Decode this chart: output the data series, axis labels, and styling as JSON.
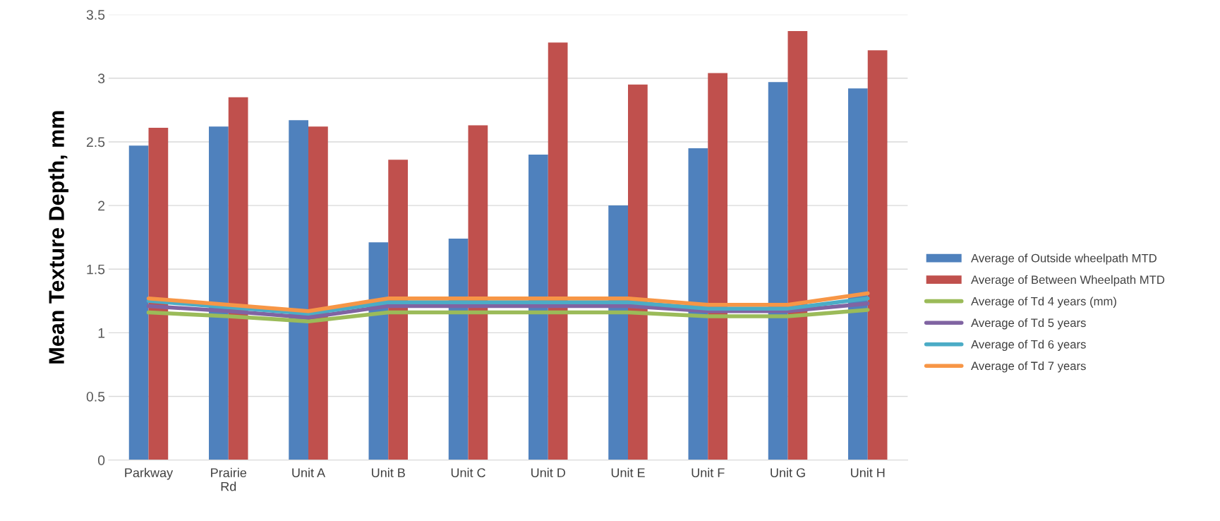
{
  "chart_data": {
    "type": "bar",
    "ylabel": "Mean Texture Depth, mm",
    "categories": [
      "Parkway",
      "Prairie\nRd",
      "Unit A",
      "Unit B",
      "Unit C",
      "Unit D",
      "Unit E",
      "Unit F",
      "Unit G",
      "Unit H"
    ],
    "series": [
      {
        "name": "Average of Outside wheelpath MTD",
        "color": "#4f81bd",
        "values": [
          2.47,
          2.62,
          2.67,
          1.71,
          1.74,
          2.4,
          2.0,
          2.45,
          2.97,
          2.92
        ]
      },
      {
        "name": "Average of Between Wheelpath MTD",
        "color": "#c0504d",
        "values": [
          2.61,
          2.85,
          2.62,
          2.36,
          2.63,
          3.28,
          2.95,
          3.04,
          3.37,
          3.22
        ]
      },
      {
        "name": "Average of Td 4 years (mm)",
        "type": "line",
        "color": "#9bbb59",
        "values": [
          1.16,
          1.13,
          1.09,
          1.16,
          1.16,
          1.16,
          1.16,
          1.13,
          1.13,
          1.18
        ]
      },
      {
        "name": "Average of Td 5 years",
        "type": "line",
        "color": "#8064a2",
        "values": [
          1.21,
          1.17,
          1.12,
          1.21,
          1.21,
          1.21,
          1.21,
          1.17,
          1.17,
          1.23
        ]
      },
      {
        "name": "Average of Td 6 years",
        "type": "line",
        "color": "#4bacc6",
        "values": [
          1.25,
          1.2,
          1.15,
          1.24,
          1.24,
          1.24,
          1.24,
          1.19,
          1.19,
          1.27
        ]
      },
      {
        "name": "Average of Td 7 years",
        "type": "line",
        "color": "#f79646",
        "values": [
          1.27,
          1.22,
          1.17,
          1.27,
          1.27,
          1.27,
          1.27,
          1.22,
          1.22,
          1.31
        ]
      }
    ],
    "ylim": [
      0,
      3.5
    ],
    "yticks": [
      0,
      0.5,
      1,
      1.5,
      2,
      2.5,
      3,
      3.5
    ],
    "grid": "y",
    "legend": "right"
  }
}
